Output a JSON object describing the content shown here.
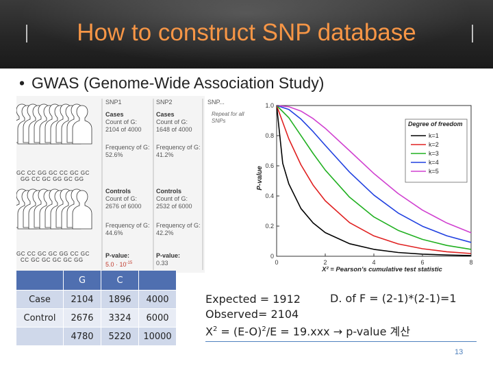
{
  "slide": {
    "title": "How to construct SNP database",
    "bullet": "GWAS (Genome-Wide Association Study)",
    "page_number": "13"
  },
  "gwas_figure": {
    "snp1": "SNP1",
    "snp2": "SNP2",
    "snp_more": "SNP...",
    "repeat_note_1": "Repeat for all",
    "repeat_note_2": "SNPs",
    "cases": "Cases",
    "controls": "Controls",
    "count_label": "Count of G:",
    "freq_label": "Frequency of G:",
    "cases_snp1_count": "2104 of 4000",
    "cases_snp2_count": "1648 of 4000",
    "cases_snp1_freq": "52.6%",
    "cases_snp2_freq": "41.2%",
    "controls_snp1_count": "2676 of 6000",
    "controls_snp2_count": "2532 of 6000",
    "controls_snp1_freq": "44.6%",
    "controls_snp2_freq": "42.2%",
    "pvalue_label": "P-value:",
    "pvalue_snp1": "5.0 · 10",
    "pvalue_snp1_exp": "-15",
    "pvalue_snp2": "0.33",
    "genotypes_top_1": "GC CC  GG GC  CC  GC GC",
    "genotypes_top_2": "GG CC  GC  GG GC  GG",
    "genotypes_bot_1": "GC CC  GC GC  GG CC  GC",
    "genotypes_bot_2": "CC GC  GC GC  GC GG"
  },
  "chart_data": {
    "type": "line",
    "title": "",
    "xlabel": "X² = Pearson's cumulative test statistic",
    "ylabel": "P-value",
    "xlim": [
      0,
      8
    ],
    "ylim": [
      0,
      1.0
    ],
    "xticks": [
      "0",
      "2",
      "4",
      "6",
      "8"
    ],
    "yticks": [
      "0",
      "0.2",
      "0.4",
      "0.6",
      "0.8",
      "1.0"
    ],
    "legend_title": "Degree of freedom",
    "legend_position": "top-right",
    "series": [
      {
        "name": "k=1",
        "color": "#000000",
        "x": [
          0,
          0.25,
          0.5,
          1,
          1.5,
          2,
          3,
          4,
          5,
          6,
          7,
          8
        ],
        "values": [
          1.0,
          0.617,
          0.48,
          0.317,
          0.221,
          0.157,
          0.083,
          0.046,
          0.025,
          0.014,
          0.008,
          0.005
        ]
      },
      {
        "name": "k=2",
        "color": "#e02020",
        "x": [
          0,
          0.5,
          1,
          1.5,
          2,
          3,
          4,
          5,
          6,
          7,
          8
        ],
        "values": [
          1.0,
          0.779,
          0.607,
          0.472,
          0.368,
          0.223,
          0.135,
          0.082,
          0.05,
          0.03,
          0.018
        ]
      },
      {
        "name": "k=3",
        "color": "#20b020",
        "x": [
          0,
          0.5,
          1,
          1.5,
          2,
          3,
          4,
          5,
          6,
          7,
          8
        ],
        "values": [
          1.0,
          0.919,
          0.801,
          0.682,
          0.572,
          0.392,
          0.261,
          0.172,
          0.112,
          0.072,
          0.046
        ]
      },
      {
        "name": "k=4",
        "color": "#2040e0",
        "x": [
          0,
          0.5,
          1,
          1.5,
          2,
          3,
          4,
          5,
          6,
          7,
          8
        ],
        "values": [
          1.0,
          0.974,
          0.91,
          0.827,
          0.736,
          0.558,
          0.406,
          0.287,
          0.199,
          0.136,
          0.092
        ]
      },
      {
        "name": "k=5",
        "color": "#d040d0",
        "x": [
          0,
          0.5,
          1,
          1.5,
          2,
          3,
          4,
          5,
          6,
          7,
          8
        ],
        "values": [
          1.0,
          0.992,
          0.963,
          0.913,
          0.849,
          0.7,
          0.549,
          0.416,
          0.306,
          0.221,
          0.156
        ]
      }
    ]
  },
  "table": {
    "header": [
      "",
      "G",
      "C",
      ""
    ],
    "rows": [
      [
        "Case",
        "2104",
        "1896",
        "4000"
      ],
      [
        "Control",
        "2676",
        "3324",
        "6000"
      ],
      [
        "",
        "4780",
        "5220",
        "10000"
      ]
    ]
  },
  "calculation": {
    "line1": "Expected = 1912",
    "dof": "D. of F = (2-1)*(2-1)=1",
    "line2": "Observed= 2104",
    "line3_a": "X",
    "line3_sup": "2",
    "line3_b": " = (E-O)",
    "line3_sup2": "2",
    "line3_c": "/E = 19.xxx ",
    "line3_arrow": "→",
    "line3_d": " p-value 계산"
  }
}
